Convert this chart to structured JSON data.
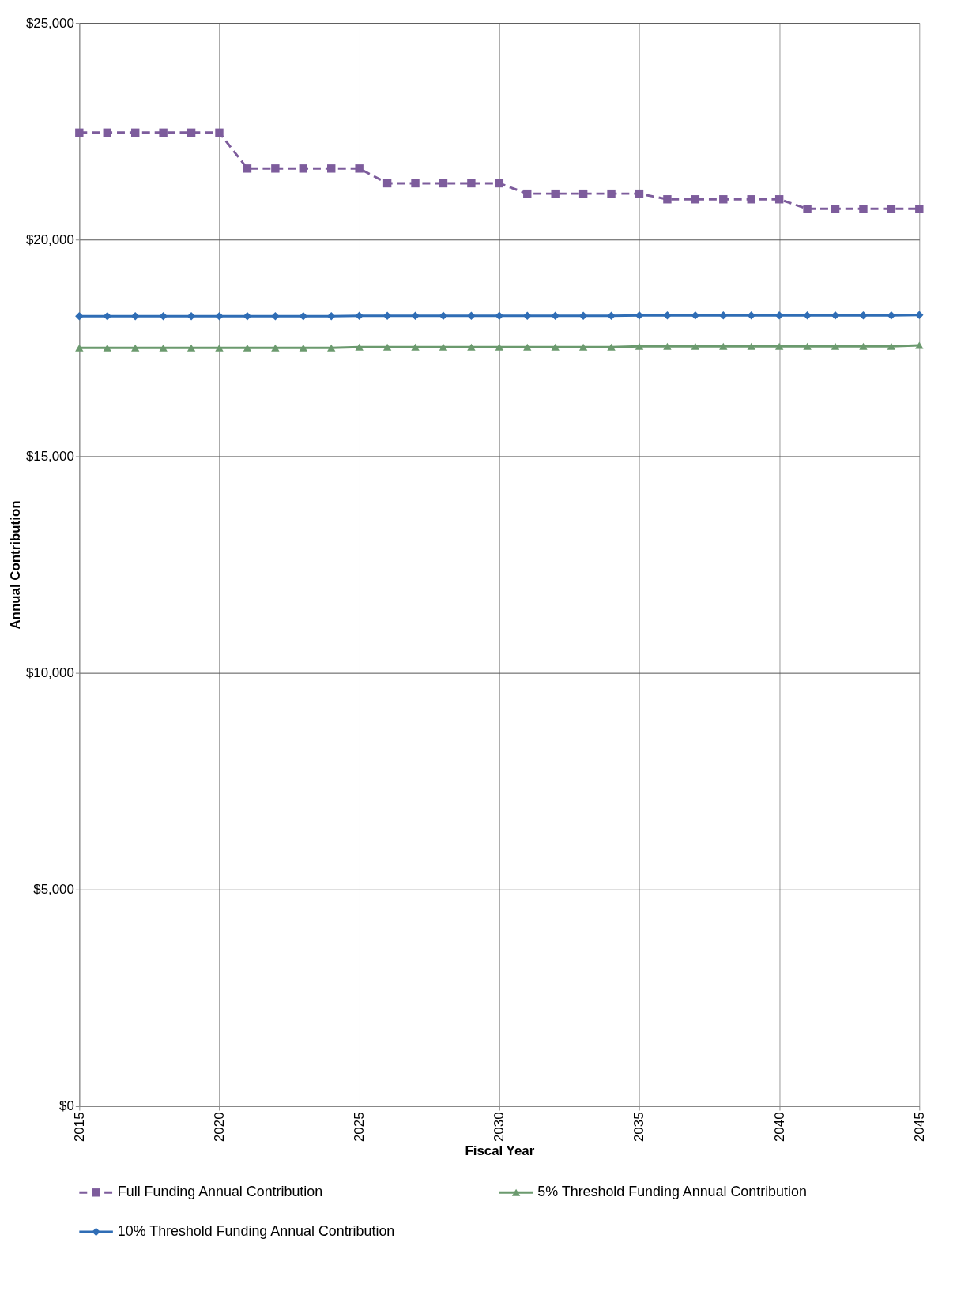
{
  "chart_data": {
    "type": "line",
    "xlabel": "Fiscal Year",
    "ylabel": "Annual Contribution",
    "x": [
      2015,
      2016,
      2017,
      2018,
      2019,
      2020,
      2021,
      2022,
      2023,
      2024,
      2025,
      2026,
      2027,
      2028,
      2029,
      2030,
      2031,
      2032,
      2033,
      2034,
      2035,
      2036,
      2037,
      2038,
      2039,
      2040,
      2041,
      2042,
      2043,
      2044,
      2045
    ],
    "series": [
      {
        "name": "Full Funding Annual Contribution",
        "color": "#7d5c9c",
        "marker": "square",
        "line_style": "dashed",
        "values": [
          22470,
          22470,
          22470,
          22470,
          22470,
          22470,
          21640,
          21640,
          21640,
          21640,
          21640,
          21300,
          21300,
          21300,
          21300,
          21300,
          21060,
          21060,
          21060,
          21060,
          21060,
          20930,
          20930,
          20930,
          20930,
          20930,
          20710,
          20710,
          20710,
          20710,
          20710
        ]
      },
      {
        "name": "5% Threshold Funding Annual Contribution",
        "color": "#6b9a6e",
        "marker": "triangle",
        "line_style": "solid",
        "values": [
          17500,
          17500,
          17500,
          17500,
          17500,
          17500,
          17500,
          17500,
          17500,
          17500,
          17520,
          17520,
          17520,
          17520,
          17520,
          17520,
          17520,
          17520,
          17520,
          17520,
          17540,
          17540,
          17540,
          17540,
          17540,
          17540,
          17540,
          17540,
          17540,
          17540,
          17560
        ]
      },
      {
        "name": "10% Threshold Funding Annual Contribution",
        "color": "#2f6db5",
        "marker": "diamond",
        "line_style": "solid",
        "values": [
          18230,
          18230,
          18230,
          18230,
          18230,
          18230,
          18230,
          18230,
          18230,
          18230,
          18240,
          18240,
          18240,
          18240,
          18240,
          18240,
          18240,
          18240,
          18240,
          18240,
          18250,
          18250,
          18250,
          18250,
          18250,
          18250,
          18250,
          18250,
          18250,
          18250,
          18260
        ]
      }
    ],
    "xlim": [
      2015,
      2045
    ],
    "xticks": [
      2015,
      2020,
      2025,
      2030,
      2035,
      2040,
      2045
    ],
    "ylim": [
      0,
      25000
    ],
    "yticks": [
      {
        "value": 0,
        "label": "$0"
      },
      {
        "value": 5000,
        "label": "$5,000"
      },
      {
        "value": 10000,
        "label": "$10,000"
      },
      {
        "value": 15000,
        "label": "$15,000"
      },
      {
        "value": 20000,
        "label": "$20,000"
      },
      {
        "value": 25000,
        "label": "$25,000"
      }
    ],
    "grid": true,
    "legend": "bottom"
  }
}
